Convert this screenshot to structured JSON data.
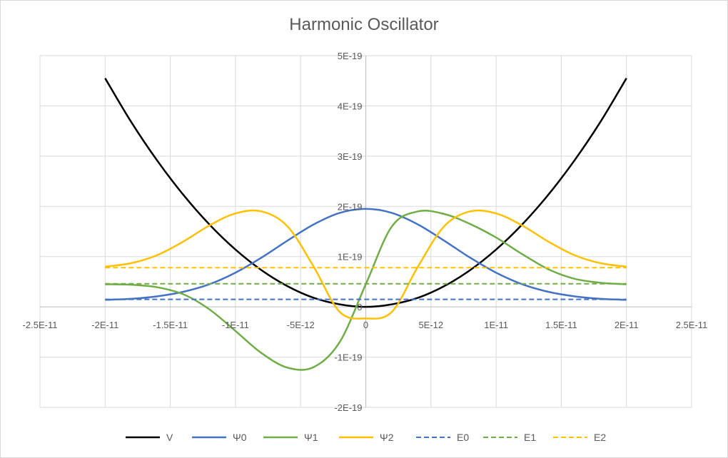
{
  "chart_data": {
    "type": "line",
    "title": "Harmonic Oscillator",
    "xlabel": "",
    "ylabel": "",
    "xlim": [
      -2.5e-11,
      2.5e-11
    ],
    "ylim": [
      -2e-19,
      5e-19
    ],
    "x_ticks": [
      -2.5e-11,
      -2e-11,
      -1.5e-11,
      -1e-11,
      -5e-12,
      0,
      5e-12,
      1e-11,
      1.5e-11,
      2e-11,
      2.5e-11
    ],
    "x_tick_labels": [
      "-2.5E-11",
      "-2E-11",
      "-1.5E-11",
      "-1E-11",
      "-5E-12",
      "0",
      "5E-12",
      "1E-11",
      "1.5E-11",
      "2E-11",
      "2.5E-11"
    ],
    "y_ticks": [
      -2e-19,
      -1e-19,
      0,
      1e-19,
      2e-19,
      3e-19,
      4e-19,
      5e-19
    ],
    "y_tick_labels": [
      "-2E-19",
      "-1E-19",
      "0",
      "1E-19",
      "2E-19",
      "3E-19",
      "4E-19",
      "5E-19"
    ],
    "grid": true,
    "legend_position": "bottom",
    "x": [
      -2e-11,
      -1.8e-11,
      -1.6e-11,
      -1.4e-11,
      -1.2e-11,
      -1e-11,
      -8e-12,
      -6e-12,
      -4e-12,
      -2e-12,
      0,
      2e-12,
      4e-12,
      6e-12,
      8e-12,
      1e-11,
      1.2e-11,
      1.4e-11,
      1.6e-11,
      1.8e-11,
      2e-11
    ],
    "series": [
      {
        "name": "V",
        "color": "#000000",
        "dashed": false,
        "values": [
          4.55e-19,
          3.68e-19,
          2.91e-19,
          2.23e-19,
          1.64e-19,
          1.14e-19,
          7.3e-20,
          4.1e-20,
          1.8e-20,
          5e-21,
          0,
          5e-21,
          1.8e-20,
          4.1e-20,
          7.3e-20,
          1.14e-19,
          1.64e-19,
          2.23e-19,
          2.91e-19,
          3.68e-19,
          4.55e-19
        ]
      },
      {
        "name": "Ψ0",
        "color": "#4472c4",
        "dashed": false,
        "values": [
          1.4e-20,
          1.6e-20,
          2.1e-20,
          3e-20,
          4.5e-20,
          6.8e-20,
          9.8e-20,
          1.32e-19,
          1.64e-19,
          1.87e-19,
          1.95e-19,
          1.87e-19,
          1.64e-19,
          1.32e-19,
          9.8e-20,
          6.8e-20,
          4.5e-20,
          3e-20,
          2.1e-20,
          1.6e-20,
          1.4e-20
        ]
      },
      {
        "name": "Ψ1",
        "color": "#70ad47",
        "dashed": false,
        "values": [
          4.5e-20,
          4.4e-20,
          3.9e-20,
          2.5e-20,
          -5e-21,
          -4.8e-20,
          -9.2e-20,
          -1.21e-19,
          -1.2e-19,
          -7e-20,
          4.5e-20,
          1.6e-19,
          1.9e-19,
          1.85e-19,
          1.65e-19,
          1.38e-19,
          1.05e-19,
          7.5e-20,
          5.6e-20,
          4.8e-20,
          4.5e-20
        ]
      },
      {
        "name": "Ψ2",
        "color": "#ffc000",
        "dashed": false,
        "values": [
          8e-20,
          8.7e-20,
          1.03e-19,
          1.3e-19,
          1.62e-19,
          1.86e-19,
          1.9e-19,
          1.6e-19,
          8e-20,
          -1e-20,
          -2.3e-20,
          -1e-20,
          8e-20,
          1.6e-19,
          1.9e-19,
          1.86e-19,
          1.62e-19,
          1.3e-19,
          1.03e-19,
          8.7e-20,
          8e-20
        ]
      },
      {
        "name": "E0",
        "color": "#4472c4",
        "dashed": true,
        "values": [
          1.5e-20,
          1.5e-20,
          1.5e-20,
          1.5e-20,
          1.5e-20,
          1.5e-20,
          1.5e-20,
          1.5e-20,
          1.5e-20,
          1.5e-20,
          1.5e-20,
          1.5e-20,
          1.5e-20,
          1.5e-20,
          1.5e-20,
          1.5e-20,
          1.5e-20,
          1.5e-20,
          1.5e-20,
          1.5e-20,
          1.5e-20
        ]
      },
      {
        "name": "E1",
        "color": "#70ad47",
        "dashed": true,
        "values": [
          4.6e-20,
          4.6e-20,
          4.6e-20,
          4.6e-20,
          4.6e-20,
          4.6e-20,
          4.6e-20,
          4.6e-20,
          4.6e-20,
          4.6e-20,
          4.6e-20,
          4.6e-20,
          4.6e-20,
          4.6e-20,
          4.6e-20,
          4.6e-20,
          4.6e-20,
          4.6e-20,
          4.6e-20,
          4.6e-20,
          4.6e-20
        ]
      },
      {
        "name": "E2",
        "color": "#ffc000",
        "dashed": true,
        "values": [
          7.8e-20,
          7.8e-20,
          7.8e-20,
          7.8e-20,
          7.8e-20,
          7.8e-20,
          7.8e-20,
          7.8e-20,
          7.8e-20,
          7.8e-20,
          7.8e-20,
          7.8e-20,
          7.8e-20,
          7.8e-20,
          7.8e-20,
          7.8e-20,
          7.8e-20,
          7.8e-20,
          7.8e-20,
          7.8e-20,
          7.8e-20
        ]
      }
    ]
  }
}
